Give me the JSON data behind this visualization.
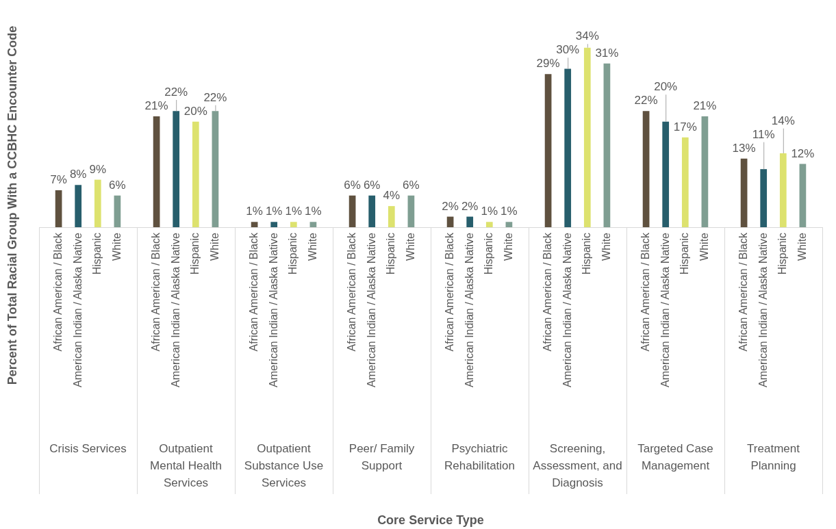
{
  "chart_data": {
    "type": "bar",
    "xlabel": "Core Service Type",
    "ylabel": "Percent of Total Racial Group With a CCBHC Encounter Code",
    "categories": [
      "Crisis Services",
      "Outpatient Mental Health Services",
      "Outpatient Substance Use Services",
      "Peer/ Family Support",
      "Psychiatric Rehabilitation",
      "Screening, Assessment, and Diagnosis",
      "Targeted Case Management",
      "Treatment Planning"
    ],
    "series": [
      {
        "name": "African American / Black",
        "color": "#5f513f",
        "values": [
          7,
          21,
          1,
          6,
          2,
          29,
          22,
          13
        ],
        "value_labels": [
          "7%",
          "21%",
          "1%",
          "6%",
          "2%",
          "29%",
          "22%",
          "13%"
        ]
      },
      {
        "name": "American Indian / Alaska Native",
        "color": "#275e6c",
        "values": [
          8,
          22,
          1,
          6,
          2,
          30,
          20,
          11
        ],
        "value_labels": [
          "8%",
          "22%",
          "1%",
          "6%",
          "2%",
          "30%",
          "20%",
          "11%"
        ]
      },
      {
        "name": "Hispanic",
        "color": "#dde26e",
        "values": [
          9,
          20,
          1,
          4,
          1,
          34,
          17,
          14
        ],
        "value_labels": [
          "9%",
          "20%",
          "1%",
          "4%",
          "1%",
          "34%",
          "17%",
          "14%"
        ]
      },
      {
        "name": "White",
        "color": "#7f9e92",
        "values": [
          6,
          22,
          1,
          6,
          1,
          31,
          21,
          12
        ],
        "value_labels": [
          "6%",
          "22%",
          "1%",
          "6%",
          "1%",
          "31%",
          "21%",
          "12%"
        ]
      }
    ]
  }
}
